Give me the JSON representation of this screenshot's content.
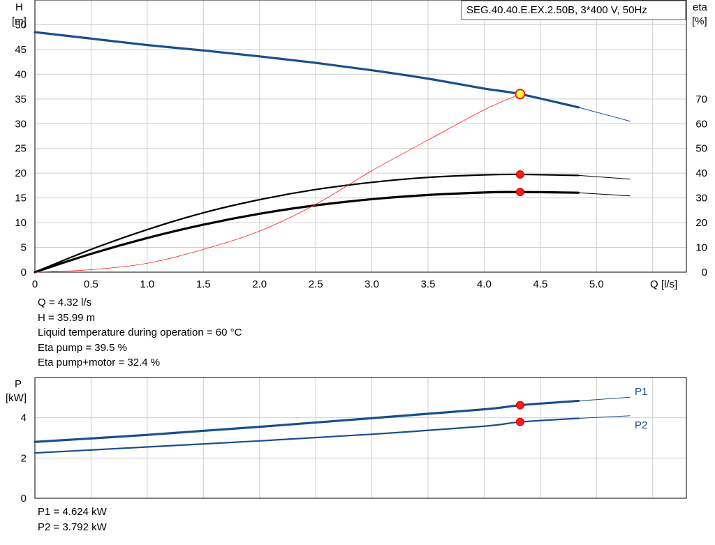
{
  "chart_data": [
    {
      "type": "line",
      "title": "SEG.40.40.E.EX.2.50B, 3*400 V, 50Hz",
      "xlabel": "Q [l/s]",
      "ylabel_left": "H",
      "ylabel_left_unit": "[m]",
      "ylabel_right": "eta",
      "ylabel_right_unit": "[%]",
      "xlim": [
        0,
        5.8
      ],
      "ylim_left": [
        0,
        55
      ],
      "ylim_right": [
        0,
        110
      ],
      "x_ticks": [
        "0",
        "0.5",
        "1.0",
        "1.5",
        "2.0",
        "2.5",
        "3.0",
        "3.5",
        "4.0",
        "4.5",
        "5.0"
      ],
      "y_ticks_left": [
        "0",
        "5",
        "10",
        "15",
        "20",
        "25",
        "30",
        "35",
        "40",
        "45",
        "50"
      ],
      "y_ticks_right": [
        "0",
        "10",
        "20",
        "30",
        "40",
        "50",
        "60",
        "70"
      ],
      "grid": true,
      "series": [
        {
          "name": "",
          "axis": "left",
          "color": "#1a4f8a",
          "x": [
            0,
            0.5,
            1.0,
            1.5,
            2.0,
            2.5,
            3.0,
            3.5,
            4.0,
            4.32,
            4.84,
            5.3
          ],
          "y": [
            48.5,
            47.2,
            45.9,
            44.8,
            43.6,
            42.3,
            40.8,
            39.1,
            37.1,
            35.99,
            33.3,
            30.5
          ],
          "operating_range_end": 4.84
        },
        {
          "name": "",
          "axis": "right",
          "color": "#000000",
          "x": [
            0,
            0.5,
            1.0,
            1.5,
            2.0,
            2.5,
            3.0,
            3.5,
            4.0,
            4.32,
            4.84,
            5.3
          ],
          "y": [
            0,
            9.2,
            17.2,
            24,
            29.3,
            33.4,
            36.3,
            38.3,
            39.3,
            39.5,
            39.1,
            37.6
          ],
          "operating_range_end": 4.84
        },
        {
          "name": "",
          "axis": "right",
          "color": "#000000",
          "x": [
            0,
            0.5,
            1.0,
            1.5,
            2.0,
            2.5,
            3.0,
            3.5,
            4.0,
            4.32,
            4.84,
            5.3
          ],
          "y": [
            0,
            7.4,
            13.8,
            19.2,
            23.6,
            27,
            29.5,
            31.2,
            32.2,
            32.4,
            32.1,
            30.8
          ],
          "operating_range_end": 4.84
        },
        {
          "name": "",
          "axis": "left",
          "color": "#ff2020",
          "x": [
            0,
            0.5,
            1.0,
            1.5,
            2.0,
            2.5,
            3.0,
            3.5,
            4.0,
            4.32
          ],
          "y": [
            0,
            0.5,
            1.8,
            4.6,
            8.3,
            13.7,
            20.5,
            26.7,
            32.8,
            35.99
          ]
        }
      ],
      "duty_point": {
        "x": 4.32,
        "H": 35.99,
        "eta_pump": 39.5,
        "eta_pump_motor": 32.4
      }
    },
    {
      "type": "line",
      "ylabel": "P",
      "ylabel_unit": "[kW]",
      "xlim": [
        0,
        5.8
      ],
      "ylim": [
        0,
        6
      ],
      "y_ticks": [
        "0",
        "2",
        "4"
      ],
      "grid": true,
      "series": [
        {
          "name": "P1",
          "color": "#1a4f8a",
          "x": [
            0,
            1.0,
            2.0,
            3.0,
            4.0,
            4.32,
            4.84,
            5.3
          ],
          "y": [
            2.8,
            3.15,
            3.55,
            3.98,
            4.42,
            4.624,
            4.84,
            5.02
          ],
          "operating_range_end": 4.84
        },
        {
          "name": "P2",
          "color": "#1a4f8a",
          "x": [
            0,
            1.0,
            2.0,
            3.0,
            4.0,
            4.32,
            4.84,
            5.3
          ],
          "y": [
            2.25,
            2.55,
            2.85,
            3.18,
            3.58,
            3.792,
            3.97,
            4.1
          ],
          "operating_range_end": 4.84
        }
      ],
      "duty_point": {
        "x": 4.32,
        "P1": 4.624,
        "P2": 3.792
      }
    }
  ],
  "readout_top": [
    "Q = 4.32 l/s",
    "H = 35.99 m",
    "Liquid temperature during operation = 60 °C",
    "Eta pump = 39.5 %",
    "Eta pump+motor = 32.4 %"
  ],
  "readout_bottom": [
    "P1 = 4.624 kW",
    "P2 = 3.792 kW"
  ]
}
